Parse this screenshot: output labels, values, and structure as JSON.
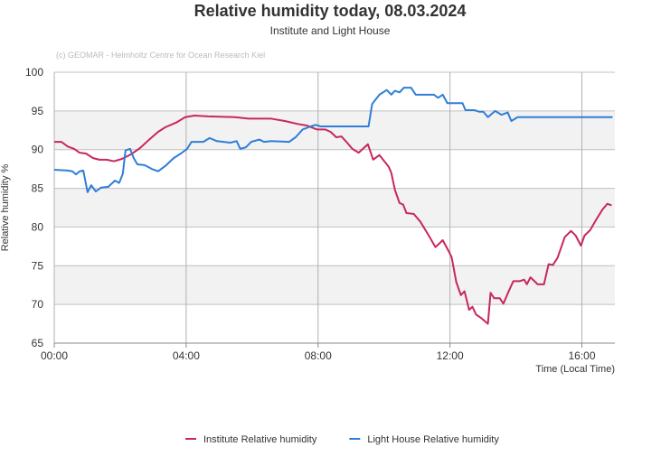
{
  "chart_data": {
    "type": "line",
    "title": "Relative humidity today, 08.03.2024",
    "subtitle": "Institute and Light House",
    "credit": "(c) GEOMAR - Helmholtz Centre for Ocean Research Kiel",
    "y_label": "Relative humidity %",
    "x_label": "Time (Local Time)",
    "xlim": [
      0,
      17
    ],
    "xticks": [
      {
        "value": 0,
        "label": "00:00"
      },
      {
        "value": 4,
        "label": "04:00"
      },
      {
        "value": 8,
        "label": "08:00"
      },
      {
        "value": 12,
        "label": "12:00"
      },
      {
        "value": 16,
        "label": "16:00"
      }
    ],
    "ylim": [
      65,
      100
    ],
    "yticks": [
      65,
      70,
      75,
      80,
      85,
      90,
      95,
      100
    ],
    "grid": true,
    "legend": "bottom",
    "series": [
      {
        "name": "Institute Relative humidity",
        "color": "#c8285a",
        "x": [
          0,
          0.22,
          0.41,
          0.6,
          0.77,
          0.96,
          1.18,
          1.37,
          1.59,
          1.81,
          2.05,
          2.33,
          2.6,
          2.88,
          3.15,
          3.37,
          3.7,
          3.97,
          4.25,
          4.66,
          5.48,
          5.89,
          6.16,
          6.58,
          6.99,
          7.4,
          7.67,
          7.97,
          8.22,
          8.38,
          8.55,
          8.71,
          8.88,
          9.04,
          9.23,
          9.51,
          9.67,
          9.86,
          10.14,
          10.22,
          10.33,
          10.47,
          10.58,
          10.68,
          10.9,
          11.1,
          11.37,
          11.56,
          11.78,
          11.97,
          12.05,
          12.19,
          12.33,
          12.44,
          12.58,
          12.68,
          12.79,
          12.96,
          13.15,
          13.23,
          13.34,
          13.51,
          13.62,
          13.78,
          13.92,
          14.11,
          14.25,
          14.33,
          14.44,
          14.66,
          14.85,
          14.99,
          15.12,
          15.26,
          15.48,
          15.67,
          15.81,
          15.97,
          16.08,
          16.25,
          16.44,
          16.63,
          16.77,
          16.9
        ],
        "values": [
          91,
          91,
          90.4,
          90.1,
          89.6,
          89.5,
          88.9,
          88.7,
          88.7,
          88.5,
          88.8,
          89.4,
          90.2,
          91.3,
          92.3,
          92.9,
          93.5,
          94.2,
          94.4,
          94.3,
          94.2,
          94.0,
          94.0,
          94.0,
          93.7,
          93.3,
          93.1,
          92.6,
          92.6,
          92.3,
          91.6,
          91.7,
          90.9,
          90.1,
          89.6,
          90.7,
          88.7,
          89.3,
          87.8,
          87,
          84.8,
          83.1,
          82.9,
          81.8,
          81.7,
          80.7,
          78.8,
          77.4,
          78.3,
          76.8,
          76.1,
          72.9,
          71.2,
          71.7,
          69.3,
          69.7,
          68.7,
          68.2,
          67.5,
          71.5,
          70.8,
          70.8,
          70.1,
          71.7,
          73,
          73,
          73.2,
          72.6,
          73.5,
          72.6,
          72.6,
          75.2,
          75.1,
          76,
          78.7,
          79.5,
          78.9,
          77.6,
          78.9,
          79.6,
          81,
          82.3,
          83,
          82.8
        ]
      },
      {
        "name": "Light House Relative humidity",
        "color": "#2f7ed8",
        "x": [
          0,
          0.41,
          0.55,
          0.66,
          0.77,
          0.88,
          1.01,
          1.12,
          1.26,
          1.42,
          1.64,
          1.84,
          1.97,
          2.08,
          2.16,
          2.3,
          2.41,
          2.52,
          2.74,
          2.96,
          3.15,
          3.37,
          3.62,
          3.84,
          4.03,
          4.16,
          4.52,
          4.71,
          4.93,
          5.34,
          5.53,
          5.64,
          5.81,
          5.97,
          6.22,
          6.36,
          6.58,
          7.12,
          7.32,
          7.53,
          7.78,
          7.92,
          8.08,
          8.77,
          9.53,
          9.64,
          9.86,
          10.08,
          10.22,
          10.33,
          10.47,
          10.6,
          10.82,
          10.96,
          11.51,
          11.64,
          11.78,
          11.92,
          12.38,
          12.47,
          12.74,
          12.88,
          13.01,
          13.15,
          13.37,
          13.56,
          13.75,
          13.86,
          14.05,
          16.93
        ],
        "values": [
          87.4,
          87.3,
          87.2,
          86.8,
          87.2,
          87.3,
          84.5,
          85.4,
          84.6,
          85.1,
          85.2,
          86,
          85.7,
          86.9,
          89.9,
          90.1,
          88.9,
          88.1,
          88,
          87.5,
          87.2,
          87.9,
          88.9,
          89.5,
          90.1,
          91,
          91,
          91.5,
          91.1,
          90.9,
          91.1,
          90.1,
          90.3,
          91,
          91.3,
          91,
          91.1,
          91,
          91.6,
          92.6,
          93,
          93.2,
          93,
          93,
          93,
          95.9,
          97.1,
          97.7,
          97.1,
          97.6,
          97.4,
          98,
          98,
          97.1,
          97.1,
          96.7,
          97.1,
          96,
          96,
          95.1,
          95.1,
          94.9,
          94.9,
          94.2,
          95,
          94.5,
          94.8,
          93.7,
          94.2,
          94.2
        ]
      }
    ]
  }
}
